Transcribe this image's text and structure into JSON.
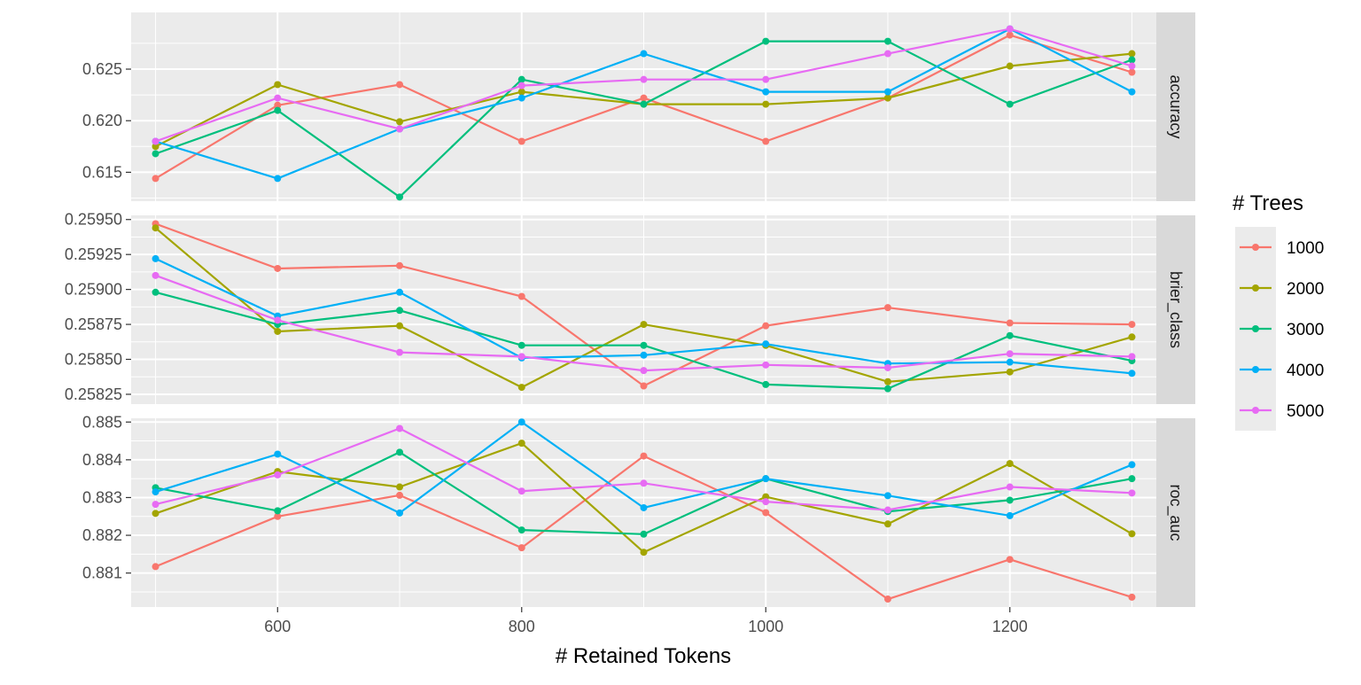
{
  "chart_data": {
    "type": "line",
    "xlabel": "# Retained Tokens",
    "x": [
      500,
      600,
      700,
      800,
      900,
      1000,
      1100,
      1200,
      1300
    ],
    "x_ticks": [
      600,
      800,
      1000,
      1200
    ],
    "x_tick_labels": [
      "600",
      "800",
      "1000",
      "1200"
    ],
    "xlim": [
      480,
      1320
    ],
    "grid": true,
    "legend": {
      "title": "# Trees",
      "placement": "right",
      "entries": [
        "1000",
        "2000",
        "3000",
        "4000",
        "5000"
      ],
      "colors": [
        "#F8766D",
        "#A3A500",
        "#00BF7D",
        "#00B0F6",
        "#E76BF3"
      ]
    },
    "panels": [
      {
        "strip": "accuracy",
        "ylim": [
          0.6122,
          0.6305
        ],
        "y_ticks": [
          0.615,
          0.62,
          0.625
        ],
        "y_tick_labels": [
          "0.615",
          "0.620",
          "0.625"
        ],
        "series": [
          {
            "name": "1000",
            "values": [
              0.6144,
              0.6215,
              0.6235,
              0.618,
              0.6222,
              0.618,
              0.6222,
              0.6283,
              0.6247
            ]
          },
          {
            "name": "2000",
            "values": [
              0.6175,
              0.6235,
              0.6199,
              0.6228,
              0.6216,
              0.6216,
              0.6222,
              0.6253,
              0.6265
            ]
          },
          {
            "name": "3000",
            "values": [
              0.6168,
              0.621,
              0.6126,
              0.624,
              0.6216,
              0.6277,
              0.6277,
              0.6216,
              0.6259
            ]
          },
          {
            "name": "4000",
            "values": [
              0.618,
              0.6144,
              0.6192,
              0.6222,
              0.6265,
              0.6228,
              0.6228,
              0.6289,
              0.6228
            ]
          },
          {
            "name": "5000",
            "values": [
              0.618,
              0.6222,
              0.6192,
              0.6234,
              0.624,
              0.624,
              0.6265,
              0.6289,
              0.6253
            ]
          }
        ]
      },
      {
        "strip": "brier_class",
        "ylim": [
          0.25818,
          0.25953
        ],
        "y_ticks": [
          0.25825,
          0.2585,
          0.25875,
          0.259,
          0.25925,
          0.2595
        ],
        "y_tick_labels": [
          "0.25825",
          "0.25850",
          "0.25875",
          "0.25900",
          "0.25925",
          "0.25950"
        ],
        "series": [
          {
            "name": "1000",
            "values": [
              0.25947,
              0.25915,
              0.25917,
              0.25895,
              0.25831,
              0.25874,
              0.25887,
              0.25876,
              0.25875
            ]
          },
          {
            "name": "2000",
            "values": [
              0.25944,
              0.2587,
              0.25874,
              0.2583,
              0.25875,
              0.2586,
              0.25834,
              0.25841,
              0.25866
            ]
          },
          {
            "name": "3000",
            "values": [
              0.25898,
              0.25875,
              0.25885,
              0.2586,
              0.2586,
              0.25832,
              0.25829,
              0.25867,
              0.25849
            ]
          },
          {
            "name": "4000",
            "values": [
              0.25922,
              0.25881,
              0.25898,
              0.25851,
              0.25853,
              0.25861,
              0.25847,
              0.25848,
              0.2584
            ]
          },
          {
            "name": "5000",
            "values": [
              0.2591,
              0.25878,
              0.25855,
              0.25852,
              0.25842,
              0.25846,
              0.25844,
              0.25854,
              0.25852
            ]
          }
        ]
      },
      {
        "strip": "roc_auc",
        "ylim": [
          0.8801,
          0.8851
        ],
        "y_ticks": [
          0.881,
          0.882,
          0.883,
          0.884,
          0.885
        ],
        "y_tick_labels": [
          "0.881",
          "0.882",
          "0.883",
          "0.884",
          "0.885"
        ],
        "series": [
          {
            "name": "1000",
            "values": [
              0.88117,
              0.8825,
              0.88306,
              0.88167,
              0.8841,
              0.8826,
              0.88031,
              0.88136,
              0.88036
            ]
          },
          {
            "name": "2000",
            "values": [
              0.88258,
              0.88369,
              0.88328,
              0.88444,
              0.88155,
              0.88302,
              0.8823,
              0.8839,
              0.88204
            ]
          },
          {
            "name": "3000",
            "values": [
              0.88326,
              0.88265,
              0.8842,
              0.88214,
              0.88203,
              0.8835,
              0.88263,
              0.88293,
              0.8835
            ]
          },
          {
            "name": "4000",
            "values": [
              0.88315,
              0.88415,
              0.88259,
              0.885,
              0.88273,
              0.8835,
              0.88305,
              0.88252,
              0.88387
            ]
          },
          {
            "name": "5000",
            "values": [
              0.88282,
              0.8836,
              0.88483,
              0.88317,
              0.88338,
              0.88289,
              0.88267,
              0.88328,
              0.88312
            ]
          }
        ]
      }
    ]
  }
}
